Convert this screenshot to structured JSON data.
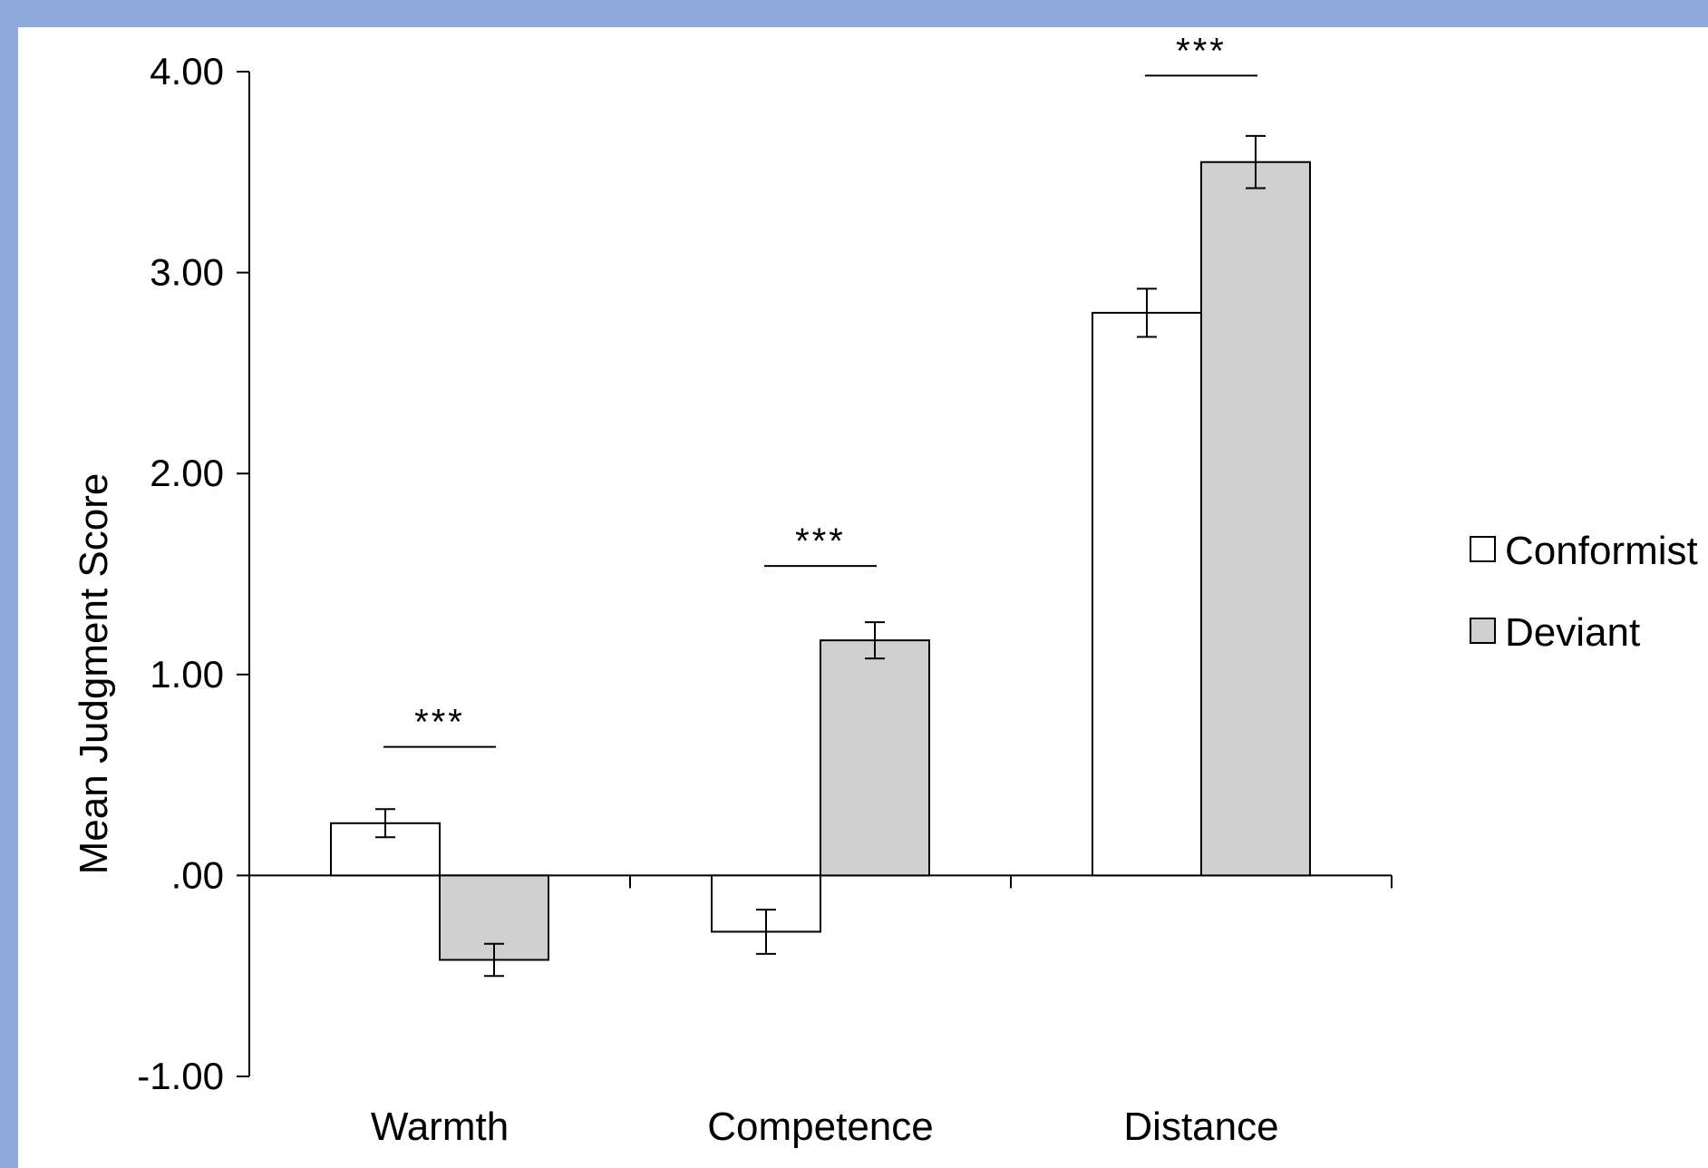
{
  "chart_data": {
    "type": "bar",
    "title": "",
    "xlabel": "",
    "ylabel": "Mean Judgment Score",
    "ylim": [
      -1.0,
      4.0
    ],
    "yticks": [
      -1.0,
      0.0,
      1.0,
      2.0,
      3.0,
      4.0
    ],
    "ytick_labels": [
      "-1.00",
      ".00",
      "1.00",
      "2.00",
      "3.00",
      "4.00"
    ],
    "categories": [
      "Warmth",
      "Competence",
      "Distance"
    ],
    "series": [
      {
        "name": "Conformist",
        "color": "#ffffff",
        "values": [
          0.26,
          -0.28,
          2.8
        ],
        "error": [
          0.07,
          0.11,
          0.12
        ]
      },
      {
        "name": "Deviant",
        "color": "#d0d0d0",
        "values": [
          -0.42,
          1.17,
          3.55
        ],
        "error": [
          0.08,
          0.09,
          0.13
        ]
      }
    ],
    "significance": [
      {
        "category": "Warmth",
        "label": "***",
        "y": 0.64
      },
      {
        "category": "Competence",
        "label": "***",
        "y": 1.54
      },
      {
        "category": "Distance",
        "label": "***",
        "y": 3.98
      }
    ],
    "legend_position": "right",
    "grid": false
  }
}
